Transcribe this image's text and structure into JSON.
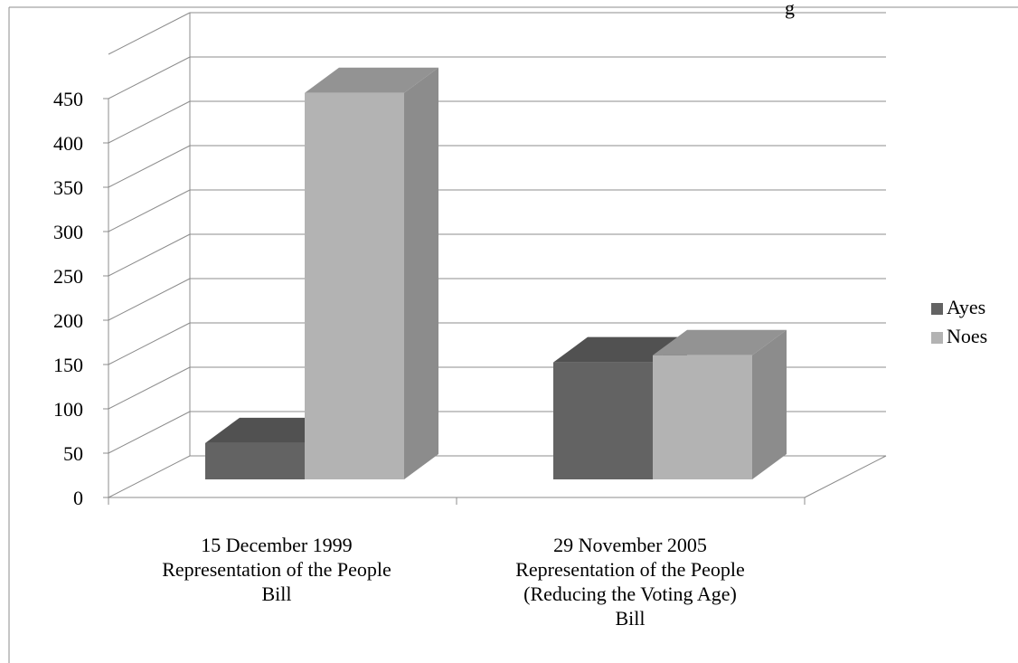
{
  "chart_data": {
    "type": "bar",
    "title": "",
    "title_fragment_visible": "g",
    "categories": [
      [
        "15 December 1999",
        "Representation of the People",
        "Bill"
      ],
      [
        "29 November 2005",
        "Representation of the People",
        "(Reducing the Voting Age)",
        "Bill"
      ]
    ],
    "series": [
      {
        "name": "Ayes",
        "values": [
          41,
          132
        ],
        "color": "#636363"
      },
      {
        "name": "Noes",
        "values": [
          436,
          140
        ],
        "color": "#b3b3b3"
      }
    ],
    "ylim": [
      0,
      450
    ],
    "yticks": [
      "0",
      "50",
      "100",
      "150",
      "200",
      "250",
      "300",
      "350",
      "400",
      "450"
    ],
    "ytick_step": 50,
    "grid": true,
    "legend_position": "right",
    "style": "3d-clustered-column"
  }
}
